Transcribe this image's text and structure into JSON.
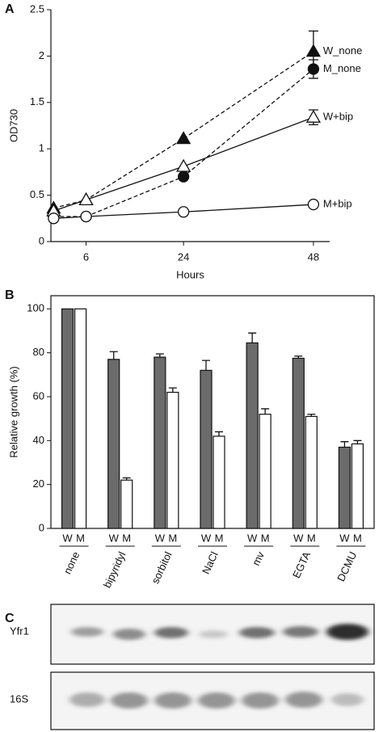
{
  "chart_data": [
    {
      "type": "line",
      "panel": "A",
      "xlabel": "Hours",
      "ylabel": "OD730",
      "x": [
        0,
        6,
        24,
        48
      ],
      "xlim": [
        -0.5,
        51
      ],
      "xticks": [
        6,
        24,
        48
      ],
      "ylim": [
        0,
        2.5
      ],
      "yticks": [
        0,
        0.5,
        1.0,
        1.5,
        2.0,
        2.5
      ],
      "series": [
        {
          "name": "W_none",
          "color": "#111111",
          "marker": "triangle",
          "filled": true,
          "dashed": true,
          "values": [
            0.36,
            0.45,
            1.11,
            2.05
          ],
          "errors": [
            null,
            null,
            null,
            0.22
          ]
        },
        {
          "name": "M_none",
          "color": "#111111",
          "marker": "circle",
          "filled": true,
          "dashed": true,
          "values": [
            0.27,
            0.27,
            0.7,
            1.86
          ],
          "errors": [
            null,
            null,
            null,
            0.1
          ]
        },
        {
          "name": "W+bip",
          "color": "#111111",
          "marker": "triangle",
          "filled": false,
          "dashed": false,
          "values": [
            0.33,
            0.45,
            0.81,
            1.34
          ],
          "errors": [
            null,
            null,
            null,
            0.08
          ]
        },
        {
          "name": "M+bip",
          "color": "#111111",
          "marker": "circle",
          "filled": false,
          "dashed": false,
          "values": [
            0.25,
            0.27,
            0.32,
            0.4
          ],
          "errors": [
            null,
            null,
            null,
            null
          ]
        }
      ]
    },
    {
      "type": "bar",
      "panel": "B",
      "ylabel": "Relative growth (%)",
      "categories": [
        "none",
        "bipyridyl",
        "sorbitol",
        "NaCl",
        "mv",
        "EGTA",
        "DCMU"
      ],
      "ylim": [
        0,
        106
      ],
      "yticks": [
        0,
        20,
        40,
        60,
        80,
        100
      ],
      "series": [
        {
          "name": "W",
          "color": "#6b6b6b",
          "values": [
            100,
            77,
            78,
            72,
            84.5,
            77.5,
            37
          ],
          "errors": [
            null,
            3.5,
            1.5,
            4.5,
            4.5,
            1,
            2.5
          ]
        },
        {
          "name": "M",
          "color": "#ffffff",
          "values": [
            100,
            22,
            62,
            42,
            52,
            51,
            38.5
          ],
          "errors": [
            null,
            1,
            2,
            2,
            2.5,
            1,
            1.5
          ]
        }
      ]
    }
  ],
  "blot": {
    "panel": "C",
    "rows": [
      {
        "label": "Yfr1"
      },
      {
        "label": "16S"
      }
    ]
  }
}
